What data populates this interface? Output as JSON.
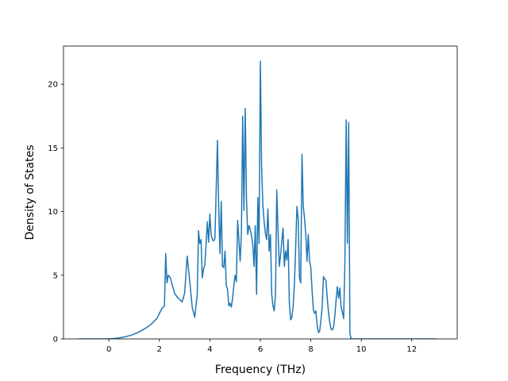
{
  "chart_data": {
    "type": "line",
    "title": "",
    "xlabel": "Frequency (THz)",
    "ylabel": "Density of States",
    "xlim": [
      -1.8,
      13.8
    ],
    "ylim": [
      0,
      23
    ],
    "xticks": [
      0,
      2,
      4,
      6,
      8,
      10,
      12
    ],
    "yticks": [
      0,
      5,
      10,
      15,
      20
    ],
    "grid": false,
    "legend": "none",
    "line_color": "#1f77b4",
    "series": [
      {
        "x": [
          -1.2,
          -0.6,
          0.0,
          0.3,
          0.6,
          0.9,
          1.2,
          1.5,
          1.7,
          1.9,
          2.0,
          2.1,
          2.2,
          2.25,
          2.3,
          2.35,
          2.4,
          2.45,
          2.5,
          2.6,
          2.7,
          2.8,
          2.9,
          3.0,
          3.1,
          3.2,
          3.3,
          3.4,
          3.5,
          3.55,
          3.6,
          3.65,
          3.7,
          3.75,
          3.8,
          3.9,
          3.95,
          4.0,
          4.05,
          4.1,
          4.15,
          4.2,
          4.3,
          4.35,
          4.4,
          4.45,
          4.5,
          4.55,
          4.6,
          4.65,
          4.7,
          4.75,
          4.8,
          4.85,
          4.9,
          4.95,
          5.0,
          5.05,
          5.1,
          5.15,
          5.2,
          5.25,
          5.3,
          5.35,
          5.4,
          5.45,
          5.5,
          5.55,
          5.6,
          5.65,
          5.7,
          5.75,
          5.8,
          5.85,
          5.9,
          5.95,
          6.0,
          6.05,
          6.1,
          6.15,
          6.2,
          6.25,
          6.3,
          6.35,
          6.4,
          6.45,
          6.5,
          6.55,
          6.6,
          6.65,
          6.7,
          6.75,
          6.8,
          6.85,
          6.9,
          6.95,
          7.0,
          7.05,
          7.1,
          7.15,
          7.2,
          7.25,
          7.3,
          7.35,
          7.4,
          7.45,
          7.5,
          7.55,
          7.6,
          7.65,
          7.7,
          7.75,
          7.8,
          7.85,
          7.9,
          7.95,
          8.0,
          8.05,
          8.1,
          8.15,
          8.2,
          8.25,
          8.3,
          8.35,
          8.4,
          8.45,
          8.5,
          8.55,
          8.6,
          8.65,
          8.7,
          8.75,
          8.8,
          8.85,
          8.9,
          8.95,
          9.0,
          9.05,
          9.1,
          9.15,
          9.2,
          9.25,
          9.3,
          9.35,
          9.4,
          9.45,
          9.5,
          9.55,
          9.6,
          9.65,
          9.7,
          9.8,
          9.9,
          10.0,
          10.1,
          10.2,
          10.25,
          10.3,
          10.35,
          10.4,
          10.45,
          10.5,
          10.55,
          10.6,
          10.7,
          10.8,
          10.9,
          11.0,
          11.05,
          11.1,
          11.15,
          11.2,
          11.25,
          11.3,
          11.35,
          11.4,
          11.45,
          11.5,
          11.55,
          11.6,
          11.65,
          11.7,
          11.75,
          11.8,
          11.9,
          12.0,
          12.5,
          13.0
        ],
        "y": [
          0,
          0,
          0,
          0.05,
          0.15,
          0.3,
          0.55,
          0.9,
          1.2,
          1.6,
          2.0,
          2.4,
          2.6,
          6.7,
          4.4,
          5.0,
          4.9,
          4.7,
          4.3,
          3.6,
          3.3,
          3.1,
          2.9,
          3.6,
          6.5,
          4.6,
          2.5,
          1.7,
          3.5,
          8.5,
          7.5,
          7.8,
          4.8,
          5.5,
          5.8,
          9.2,
          7.6,
          9.8,
          8.2,
          7.8,
          7.7,
          7.9,
          15.6,
          10.2,
          6.7,
          10.8,
          5.7,
          5.6,
          6.9,
          4.2,
          3.9,
          2.6,
          2.8,
          2.5,
          3.2,
          4.2,
          5.0,
          4.5,
          9.3,
          7.8,
          6.1,
          8.3,
          17.5,
          10.1,
          18.1,
          11.0,
          8.2,
          8.9,
          8.6,
          8.1,
          7.4,
          5.7,
          8.9,
          3.5,
          11.1,
          7.5,
          21.8,
          13.5,
          10.5,
          9.2,
          8.3,
          7.8,
          10.2,
          6.9,
          8.2,
          3.5,
          2.6,
          2.2,
          3.5,
          11.7,
          8.6,
          5.7,
          6.5,
          7.7,
          8.7,
          5.7,
          6.9,
          6.2,
          7.8,
          2.8,
          1.5,
          1.7,
          2.6,
          4.3,
          7.2,
          10.4,
          9.4,
          4.8,
          4.4,
          14.5,
          10.4,
          9.5,
          8.2,
          6.1,
          8.2,
          6.1,
          5.6,
          3.8,
          2.3,
          2.0,
          2.2,
          1.1,
          0.5,
          0.6,
          1.5,
          2.5,
          4.9,
          4.7,
          4.6,
          3.2,
          2.1,
          1.3,
          0.8,
          0.7,
          0.9,
          1.8,
          3.0,
          4.1,
          3.2,
          4.0,
          2.5,
          2.1,
          1.6,
          6.0,
          17.2,
          7.5,
          17.0,
          0.4,
          0.0,
          0.0,
          0.0,
          0.0,
          0.0,
          0.0,
          0.0,
          0.0,
          0.0,
          0.0,
          0.0,
          0.0,
          0.0,
          0.0,
          0.0,
          0.0,
          0.0,
          0.0,
          0.0,
          0.0,
          0.0,
          0.0,
          0.0,
          0.0,
          0.0,
          0.0,
          0.0,
          0.0,
          0.0,
          0.0,
          0.0,
          0.0,
          0.0,
          0.0,
          0.0,
          0.0,
          0.0,
          0.0,
          0.0,
          0.0
        ]
      }
    ]
  }
}
